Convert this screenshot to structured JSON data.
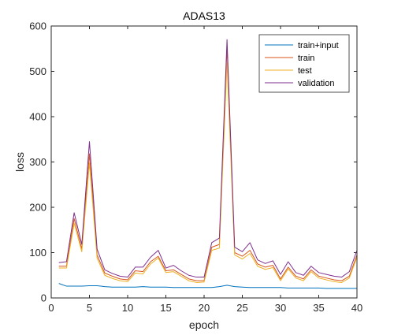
{
  "chart_data": {
    "type": "line",
    "title": "ADAS13",
    "xlabel": "epoch",
    "ylabel": "loss",
    "xlim": [
      0,
      40
    ],
    "ylim": [
      0,
      600
    ],
    "xticks": [
      0,
      5,
      10,
      15,
      20,
      25,
      30,
      35,
      40
    ],
    "yticks": [
      0,
      100,
      200,
      300,
      400,
      500,
      600
    ],
    "grid": false,
    "legend_position": "top-right",
    "x": [
      1,
      2,
      3,
      4,
      5,
      6,
      7,
      8,
      9,
      10,
      11,
      12,
      13,
      14,
      15,
      16,
      17,
      18,
      19,
      20,
      21,
      22,
      23,
      24,
      25,
      26,
      27,
      28,
      29,
      30,
      31,
      32,
      33,
      34,
      35,
      36,
      37,
      38,
      39,
      40
    ],
    "series": [
      {
        "name": "train+input",
        "color": "#0072BD",
        "values": [
          32,
          26,
          26,
          26,
          27,
          27,
          25,
          24,
          24,
          24,
          24,
          25,
          24,
          24,
          24,
          23,
          23,
          23,
          23,
          23,
          23,
          25,
          28,
          25,
          24,
          23,
          23,
          23,
          23,
          23,
          22,
          22,
          22,
          22,
          22,
          21,
          21,
          21,
          21,
          21
        ]
      },
      {
        "name": "train",
        "color": "#D95319",
        "values": [
          70,
          70,
          175,
          108,
          318,
          95,
          55,
          48,
          42,
          40,
          60,
          58,
          80,
          92,
          60,
          62,
          52,
          42,
          38,
          38,
          112,
          118,
          555,
          100,
          92,
          105,
          75,
          68,
          72,
          42,
          68,
          48,
          42,
          62,
          48,
          44,
          40,
          38,
          48,
          95
        ]
      },
      {
        "name": "test",
        "color": "#EDB120",
        "values": [
          66,
          66,
          165,
          102,
          298,
          88,
          50,
          43,
          38,
          36,
          55,
          53,
          75,
          88,
          56,
          58,
          48,
          38,
          34,
          35,
          105,
          110,
          520,
          95,
          86,
          98,
          70,
          63,
          67,
          38,
          64,
          44,
          38,
          58,
          44,
          40,
          36,
          34,
          44,
          90
        ]
      },
      {
        "name": "validation",
        "color": "#7E2F8E",
        "values": [
          78,
          80,
          188,
          118,
          345,
          108,
          62,
          54,
          48,
          46,
          68,
          68,
          90,
          105,
          66,
          72,
          60,
          50,
          46,
          46,
          122,
          132,
          570,
          112,
          102,
          122,
          84,
          76,
          82,
          52,
          80,
          56,
          50,
          70,
          56,
          52,
          48,
          46,
          58,
          105
        ]
      }
    ]
  }
}
